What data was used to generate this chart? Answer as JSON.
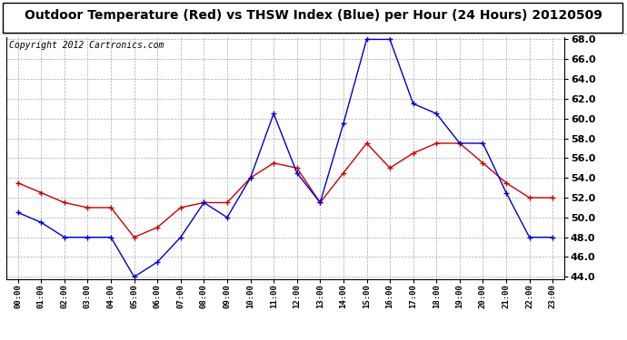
{
  "title": "Outdoor Temperature (Red) vs THSW Index (Blue) per Hour (24 Hours) 20120509",
  "copyright": "Copyright 2012 Cartronics.com",
  "hours": [
    0,
    1,
    2,
    3,
    4,
    5,
    6,
    7,
    8,
    9,
    10,
    11,
    12,
    13,
    14,
    15,
    16,
    17,
    18,
    19,
    20,
    21,
    22,
    23
  ],
  "hour_labels": [
    "00:00",
    "01:00",
    "02:00",
    "03:00",
    "04:00",
    "05:00",
    "06:00",
    "07:00",
    "08:00",
    "09:00",
    "10:00",
    "11:00",
    "12:00",
    "13:00",
    "14:00",
    "15:00",
    "16:00",
    "17:00",
    "18:00",
    "19:00",
    "20:00",
    "21:00",
    "22:00",
    "23:00"
  ],
  "red_temp": [
    53.5,
    52.5,
    51.5,
    51.0,
    51.0,
    48.0,
    49.0,
    51.0,
    51.5,
    51.5,
    54.0,
    55.5,
    55.0,
    51.5,
    54.5,
    57.5,
    55.0,
    56.5,
    57.5,
    57.5,
    55.5,
    53.5,
    52.0,
    52.0
  ],
  "blue_thsw": [
    50.5,
    49.5,
    48.0,
    48.0,
    48.0,
    44.0,
    45.5,
    48.0,
    51.5,
    50.0,
    54.0,
    60.5,
    54.5,
    51.5,
    59.5,
    68.0,
    68.0,
    61.5,
    60.5,
    57.5,
    57.5,
    52.5,
    48.0,
    48.0
  ],
  "ylim": [
    44.0,
    68.0
  ],
  "yticks": [
    44.0,
    46.0,
    48.0,
    50.0,
    52.0,
    54.0,
    56.0,
    58.0,
    60.0,
    62.0,
    64.0,
    66.0,
    68.0
  ],
  "red_color": "#cc0000",
  "blue_color": "#0000cc",
  "bg_color": "#ffffff",
  "grid_color": "#aaaaaa",
  "title_fontsize": 10,
  "copyright_fontsize": 7
}
